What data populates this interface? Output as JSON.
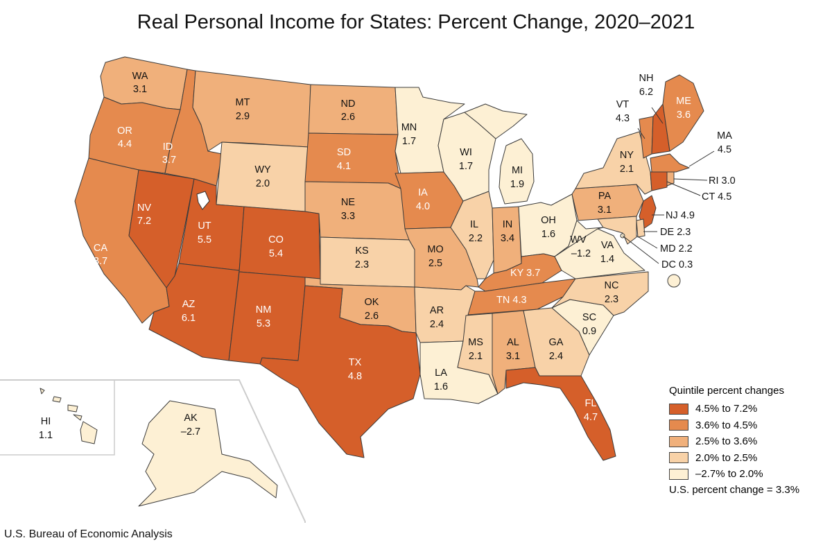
{
  "title": "Real Personal Income for States: Percent Change, 2020–2021",
  "source": "U.S. Bureau of Economic Analysis",
  "legend": {
    "title": "Quintile percent changes",
    "items": [
      {
        "label": "4.5% to 7.2%",
        "color": "#d55f2a"
      },
      {
        "label": "3.6% to 4.5%",
        "color": "#e58a4e"
      },
      {
        "label": "2.5% to 3.6%",
        "color": "#f0b07b"
      },
      {
        "label": "2.0% to 2.5%",
        "color": "#f8d2a8"
      },
      {
        "label": "–2.7% to 2.0%",
        "color": "#fdf0d4"
      }
    ],
    "us_change": "U.S. percent change = 3.3%"
  },
  "states": [
    {
      "abbr": "WA",
      "value": "3.1",
      "tier": 2
    },
    {
      "abbr": "OR",
      "value": "4.4",
      "tier": 1
    },
    {
      "abbr": "CA",
      "value": "3.7",
      "tier": 1
    },
    {
      "abbr": "NV",
      "value": "7.2",
      "tier": 0
    },
    {
      "abbr": "ID",
      "value": "3.7",
      "tier": 1
    },
    {
      "abbr": "MT",
      "value": "2.9",
      "tier": 2
    },
    {
      "abbr": "WY",
      "value": "2.0",
      "tier": 3
    },
    {
      "abbr": "UT",
      "value": "5.5",
      "tier": 0
    },
    {
      "abbr": "AZ",
      "value": "6.1",
      "tier": 0
    },
    {
      "abbr": "CO",
      "value": "5.4",
      "tier": 0
    },
    {
      "abbr": "NM",
      "value": "5.3",
      "tier": 0
    },
    {
      "abbr": "ND",
      "value": "2.6",
      "tier": 2
    },
    {
      "abbr": "SD",
      "value": "4.1",
      "tier": 1
    },
    {
      "abbr": "NE",
      "value": "3.3",
      "tier": 2
    },
    {
      "abbr": "KS",
      "value": "2.3",
      "tier": 3
    },
    {
      "abbr": "OK",
      "value": "2.6",
      "tier": 2
    },
    {
      "abbr": "TX",
      "value": "4.8",
      "tier": 0
    },
    {
      "abbr": "MN",
      "value": "1.7",
      "tier": 4
    },
    {
      "abbr": "IA",
      "value": "4.0",
      "tier": 1
    },
    {
      "abbr": "MO",
      "value": "2.5",
      "tier": 2
    },
    {
      "abbr": "AR",
      "value": "2.4",
      "tier": 3
    },
    {
      "abbr": "LA",
      "value": "1.6",
      "tier": 4
    },
    {
      "abbr": "WI",
      "value": "1.7",
      "tier": 4
    },
    {
      "abbr": "IL",
      "value": "2.2",
      "tier": 3
    },
    {
      "abbr": "MI",
      "value": "1.9",
      "tier": 4
    },
    {
      "abbr": "IN",
      "value": "3.4",
      "tier": 2
    },
    {
      "abbr": "OH",
      "value": "1.6",
      "tier": 4
    },
    {
      "abbr": "KY",
      "value": "3.7",
      "tier": 1
    },
    {
      "abbr": "TN",
      "value": "4.3",
      "tier": 1
    },
    {
      "abbr": "MS",
      "value": "2.1",
      "tier": 3
    },
    {
      "abbr": "AL",
      "value": "3.1",
      "tier": 2
    },
    {
      "abbr": "GA",
      "value": "2.4",
      "tier": 3
    },
    {
      "abbr": "FL",
      "value": "4.7",
      "tier": 0
    },
    {
      "abbr": "SC",
      "value": "0.9",
      "tier": 4
    },
    {
      "abbr": "NC",
      "value": "2.3",
      "tier": 3
    },
    {
      "abbr": "VA",
      "value": "1.4",
      "tier": 4
    },
    {
      "abbr": "WV",
      "value": "–1.2",
      "tier": 4
    },
    {
      "abbr": "PA",
      "value": "3.1",
      "tier": 2
    },
    {
      "abbr": "NY",
      "value": "2.1",
      "tier": 3
    },
    {
      "abbr": "VT",
      "value": "4.3",
      "tier": 1
    },
    {
      "abbr": "NH",
      "value": "6.2",
      "tier": 0
    },
    {
      "abbr": "ME",
      "value": "3.6",
      "tier": 1
    },
    {
      "abbr": "MA",
      "value": "4.5",
      "tier": 1
    },
    {
      "abbr": "RI",
      "value": "3.0",
      "tier": 2
    },
    {
      "abbr": "CT",
      "value": "4.5",
      "tier": 0
    },
    {
      "abbr": "NJ",
      "value": "4.9",
      "tier": 0
    },
    {
      "abbr": "DE",
      "value": "2.3",
      "tier": 3
    },
    {
      "abbr": "MD",
      "value": "2.2",
      "tier": 3
    },
    {
      "abbr": "DC",
      "value": "0.3",
      "tier": 4
    },
    {
      "abbr": "AK",
      "value": "–2.7",
      "tier": 4
    },
    {
      "abbr": "HI",
      "value": "1.1",
      "tier": 4
    }
  ]
}
